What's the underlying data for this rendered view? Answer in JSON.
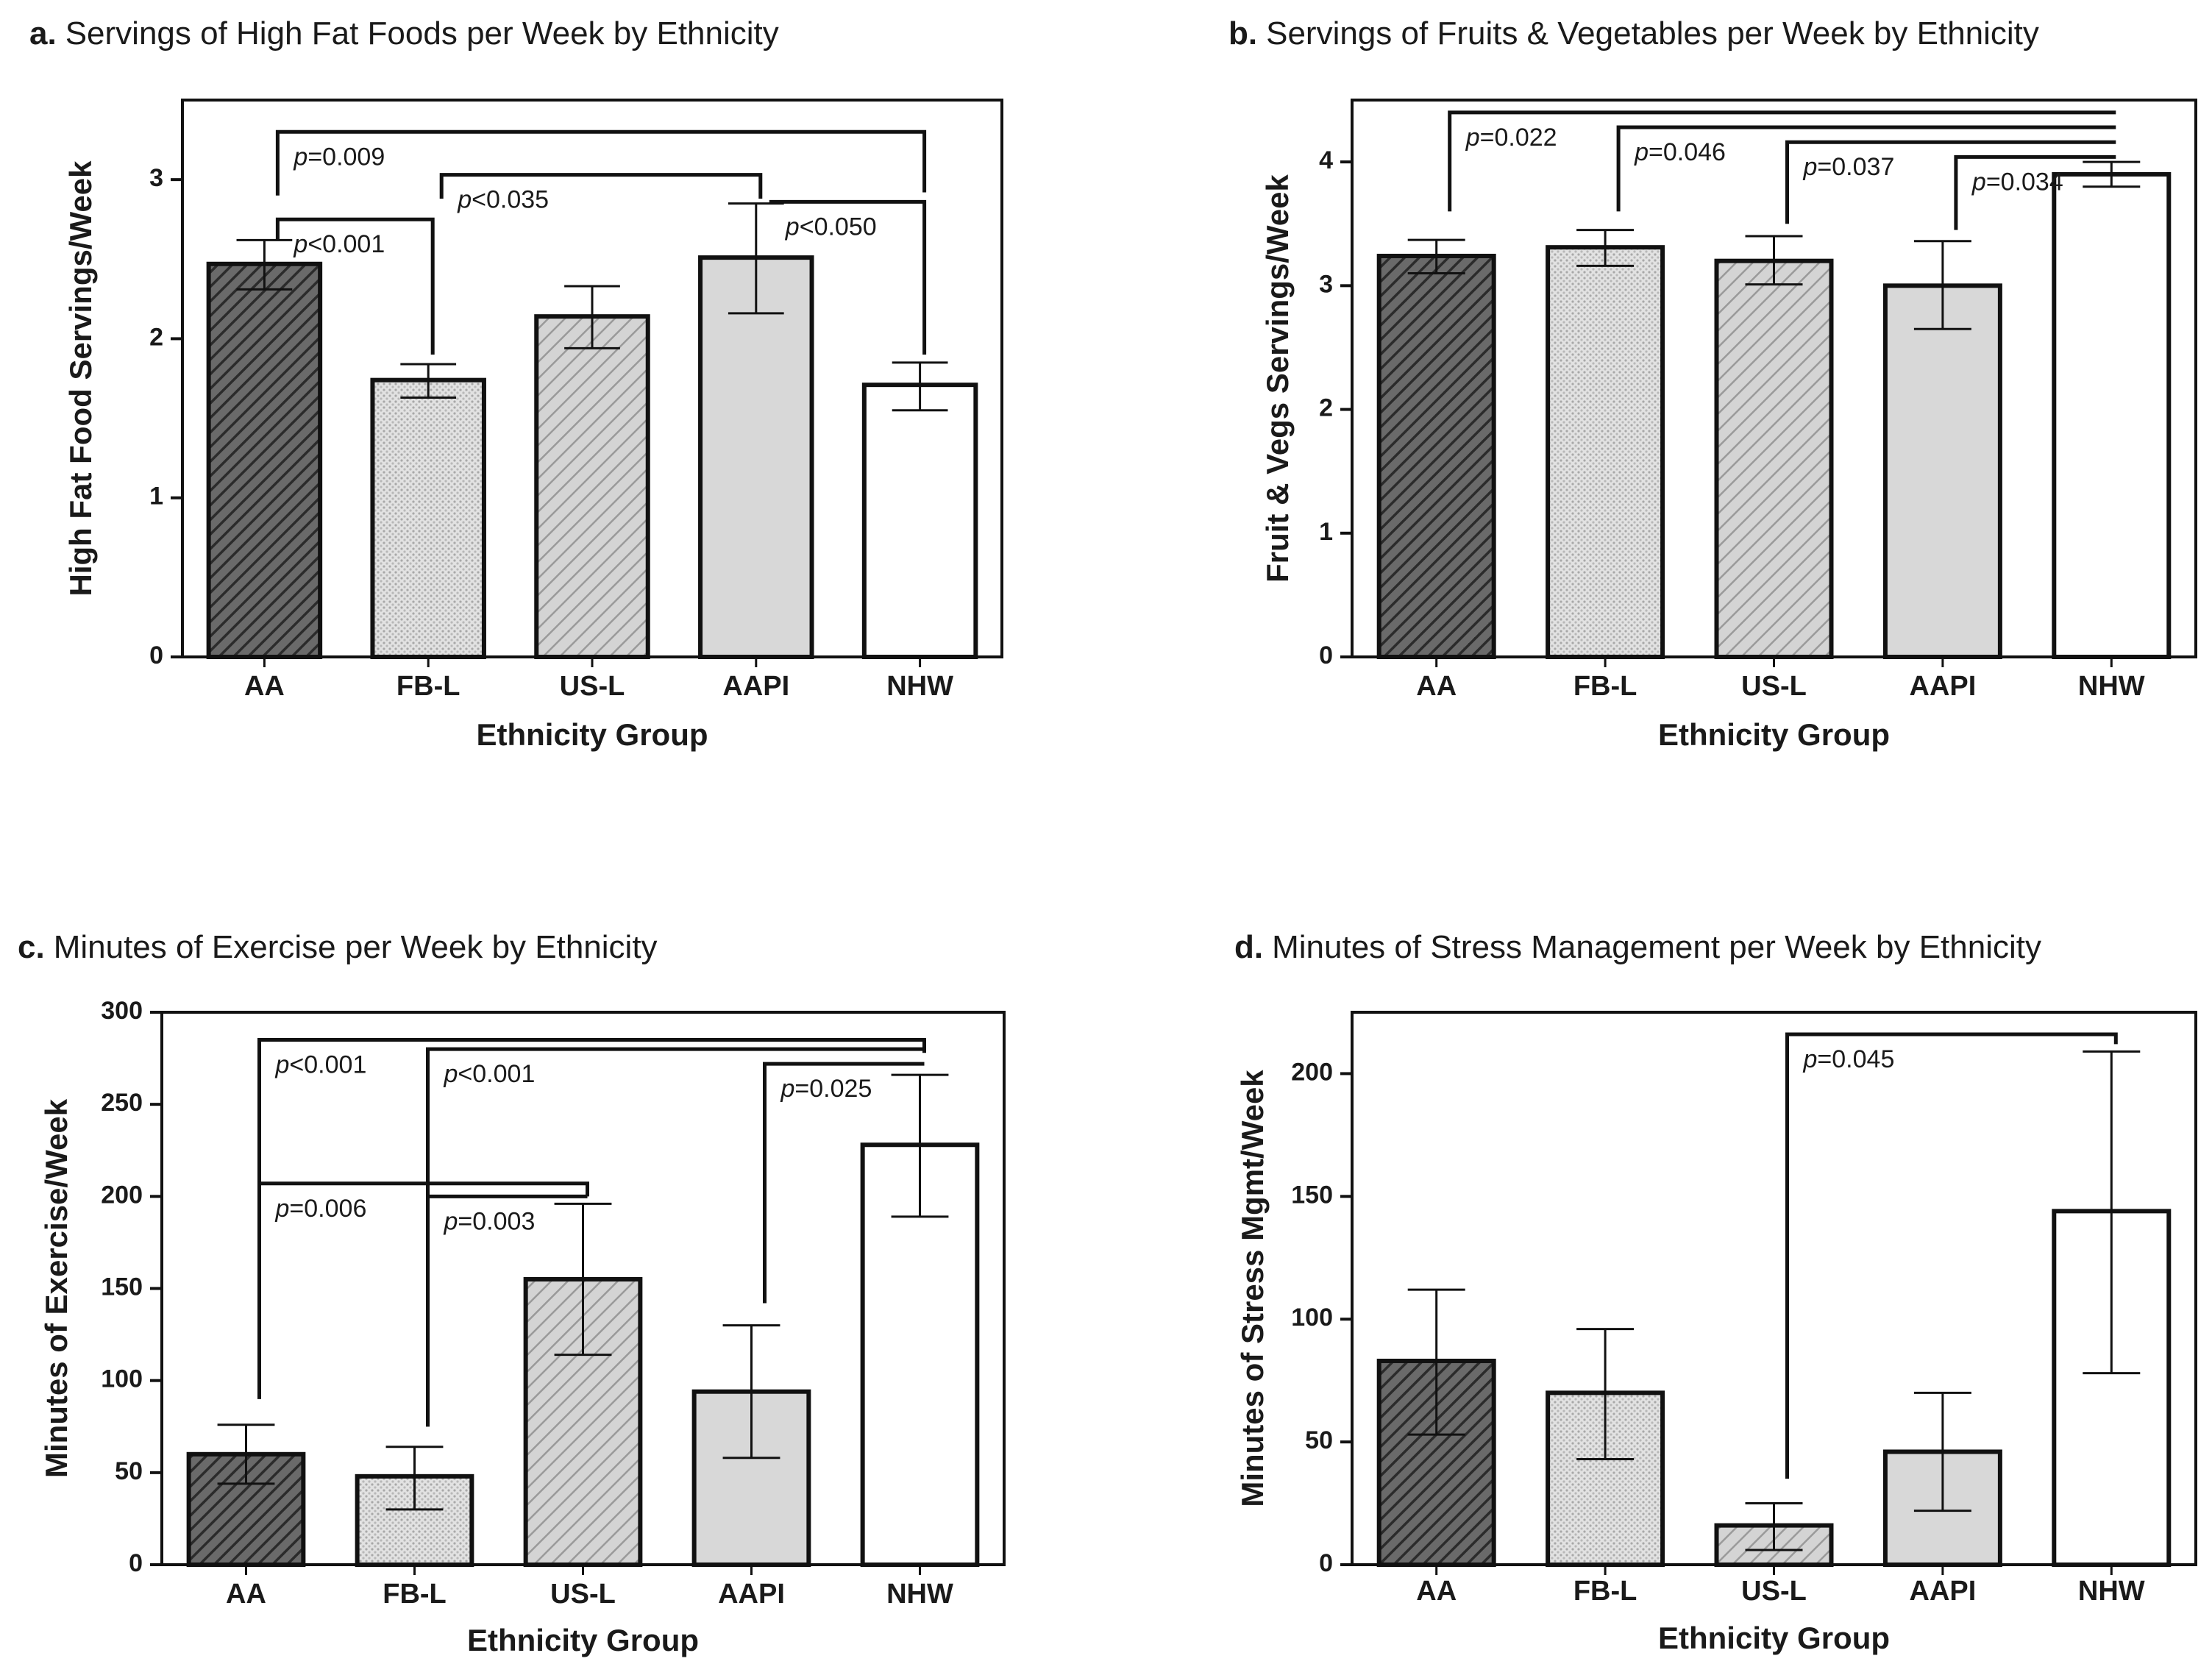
{
  "figure": {
    "patterns": {
      "AA": "dark-diagonal",
      "FB-L": "light-dotted",
      "US-L": "grey-diagonal",
      "AAPI": "solid-light-grey",
      "NHW": "white"
    },
    "colors": {
      "dark_fill": "#555555",
      "dotted_fill": "#dcdcdc",
      "grey_fill": "#cfcfcf",
      "solid_grey": "#d8d8d8",
      "white_fill": "#ffffff",
      "stroke": "#111111"
    }
  },
  "chart_data": [
    {
      "id": "a",
      "type": "bar",
      "letter": "a.",
      "title": "Servings of High Fat Foods per Week by Ethnicity",
      "categories": [
        "AA",
        "FB-L",
        "US-L",
        "AAPI",
        "NHW"
      ],
      "values": [
        2.47,
        1.74,
        2.14,
        2.51,
        1.71
      ],
      "error_low": [
        2.31,
        1.63,
        1.94,
        2.16,
        1.55
      ],
      "error_high": [
        2.62,
        1.84,
        2.33,
        2.85,
        1.85
      ],
      "xlabel": "Ethnicity Group",
      "ylabel": "High Fat Food Servings/Week",
      "ylim": [
        0,
        3.5
      ],
      "yticks": [
        0,
        1,
        2,
        3
      ],
      "ytick_labels": [
        "0",
        "1",
        "2",
        "3"
      ],
      "annotations": [
        {
          "p": "p",
          "rest": "<0.001",
          "from": 0,
          "to": 1,
          "level": 2.75,
          "drop_from": 2.62,
          "drop_to": 1.9
        },
        {
          "p": "p",
          "rest": "<0.035",
          "from": 1,
          "to": 3,
          "level": 3.03,
          "drop_from": 2.88,
          "drop_to": 2.88
        },
        {
          "p": "p",
          "rest": "=0.009",
          "from": 0,
          "to": 4,
          "level": 3.3,
          "drop_from": 2.9,
          "drop_to": 2.92
        },
        {
          "p": "p",
          "rest": "<0.050",
          "from": 3,
          "to": 4,
          "level": 2.86,
          "drop_from": 2.86,
          "drop_to": 1.9
        }
      ]
    },
    {
      "id": "b",
      "type": "bar",
      "letter": "b.",
      "title": "Servings of Fruits & Vegetables per Week by Ethnicity",
      "categories": [
        "AA",
        "FB-L",
        "US-L",
        "AAPI",
        "NHW"
      ],
      "values": [
        3.24,
        3.31,
        3.2,
        3.0,
        3.9
      ],
      "error_low": [
        3.1,
        3.16,
        3.01,
        2.65,
        3.8
      ],
      "error_high": [
        3.37,
        3.45,
        3.4,
        3.36,
        4.0
      ],
      "xlabel": "Ethnicity Group",
      "ylabel": "Fruit & Vegs Servings/Week",
      "ylim": [
        0,
        4.5
      ],
      "yticks": [
        0,
        1,
        2,
        3,
        4
      ],
      "ytick_labels": [
        "0",
        "1",
        "2",
        "3",
        "4"
      ],
      "annotations": [
        {
          "p": "p",
          "rest": "=0.022",
          "from": 0,
          "to": 4,
          "level": 4.4,
          "drop_from": 3.6,
          "drop_to": 4.4
        },
        {
          "p": "p",
          "rest": "=0.046",
          "from": 1,
          "to": 4,
          "level": 4.28,
          "drop_from": 3.6,
          "drop_to": 4.28
        },
        {
          "p": "p",
          "rest": "=0.037",
          "from": 2,
          "to": 4,
          "level": 4.16,
          "drop_from": 3.5,
          "drop_to": 4.16
        },
        {
          "p": "p",
          "rest": "=0.034",
          "from": 3,
          "to": 4,
          "level": 4.04,
          "drop_from": 3.45,
          "drop_to": 4.04
        }
      ]
    },
    {
      "id": "c",
      "type": "bar",
      "letter": "c.",
      "title": "Minutes of Exercise per Week by Ethnicity",
      "categories": [
        "AA",
        "FB-L",
        "US-L",
        "AAPI",
        "NHW"
      ],
      "values": [
        60,
        48,
        155,
        94,
        228
      ],
      "error_low": [
        44,
        30,
        114,
        58,
        189
      ],
      "error_high": [
        76,
        64,
        196,
        130,
        266
      ],
      "xlabel": "Ethnicity Group",
      "ylabel": "Minutes of Exercise/Week",
      "ylim": [
        0,
        300
      ],
      "yticks": [
        0,
        50,
        100,
        150,
        200,
        250,
        300
      ],
      "ytick_labels": [
        "0",
        "50",
        "100",
        "150",
        "200",
        "250",
        "300"
      ],
      "annotations": [
        {
          "p": "p",
          "rest": "<0.001",
          "from": 0,
          "to": 4,
          "level": 285,
          "drop_from": 90,
          "drop_to": 278
        },
        {
          "p": "p",
          "rest": "<0.001",
          "from": 1,
          "to": 4,
          "level": 280,
          "drop_from": 75,
          "drop_to": 278
        },
        {
          "p": "p",
          "rest": "=0.025",
          "from": 3,
          "to": 4,
          "level": 272,
          "drop_from": 142,
          "drop_to": 272
        },
        {
          "p": "p",
          "rest": "=0.006",
          "from": 0,
          "to": 2,
          "level": 207,
          "drop_from": 90,
          "drop_to": 200
        },
        {
          "p": "p",
          "rest": "=0.003",
          "from": 1,
          "to": 2,
          "level": 200,
          "drop_from": 75,
          "drop_to": 200
        }
      ]
    },
    {
      "id": "d",
      "type": "bar",
      "letter": "d.",
      "title": "Minutes of Stress Management per Week by Ethnicity",
      "categories": [
        "AA",
        "FB-L",
        "US-L",
        "AAPI",
        "NHW"
      ],
      "values": [
        83,
        70,
        16,
        46,
        144
      ],
      "error_low": [
        53,
        43,
        6,
        22,
        78
      ],
      "error_high": [
        112,
        96,
        25,
        70,
        209
      ],
      "xlabel": "Ethnicity Group",
      "ylabel": "Minutes of Stress Mgmt/Week",
      "ylim": [
        0,
        225
      ],
      "yticks": [
        0,
        50,
        100,
        150,
        200
      ],
      "ytick_labels": [
        "0",
        "50",
        "100",
        "150",
        "200"
      ],
      "annotations": [
        {
          "p": "p",
          "rest": "=0.045",
          "from": 2,
          "to": 4,
          "level": 216,
          "drop_from": 35,
          "drop_to": 212
        }
      ]
    }
  ]
}
